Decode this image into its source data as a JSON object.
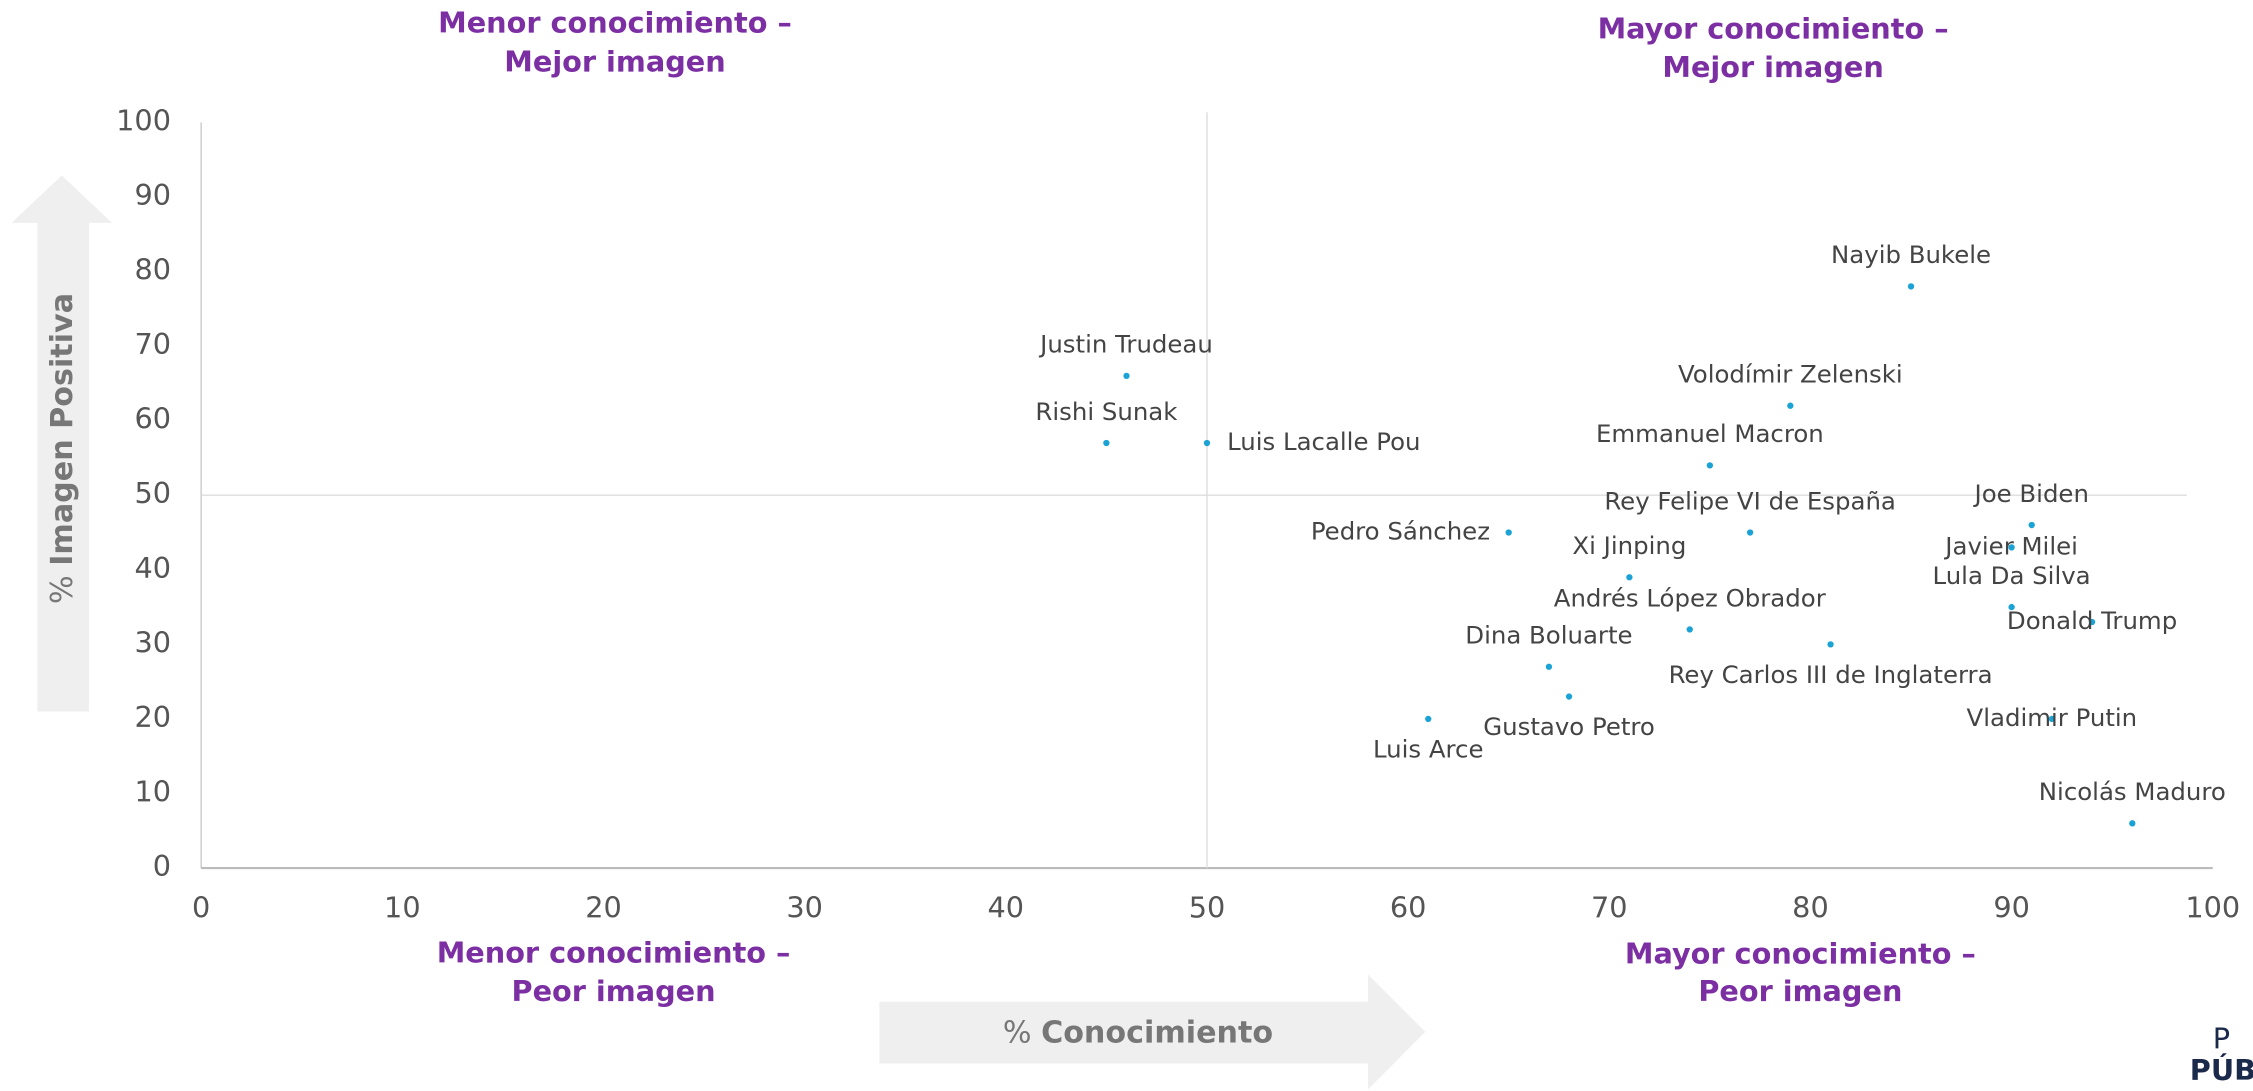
{
  "chart_data": {
    "type": "scatter",
    "quadrant_labels": {
      "top_left": [
        "Menor conocimiento –",
        "Mejor imagen"
      ],
      "top_right": [
        "Mayor conocimiento –",
        "Mejor imagen"
      ],
      "bottom_left": [
        "Menor conocimiento –",
        "Peor imagen"
      ],
      "bottom_right": [
        "Mayor conocimiento –",
        "Peor imagen"
      ]
    },
    "x_label": {
      "unit": "%",
      "text": "Conocimiento"
    },
    "y_label": {
      "unit": "%",
      "text": "Imagen Positiva"
    },
    "xlim": [
      0,
      100
    ],
    "xticks": [
      0,
      10,
      20,
      30,
      40,
      50,
      60,
      70,
      80,
      90,
      100
    ],
    "ylim": [
      0,
      100
    ],
    "yticks": [
      0,
      10,
      20,
      30,
      40,
      50,
      60,
      70,
      80,
      90,
      100
    ],
    "reference_lines": {
      "x": 50,
      "y": 50
    },
    "color": "#1ca3d6",
    "labels": [
      "Nayib Bukele",
      "Volodímir Zelenski",
      "Emmanuel Macron",
      "Justin Trudeau",
      "Rishi Sunak",
      "Luis Lacalle Pou",
      "Pedro Sánchez",
      "Rey Felipe VI de España",
      "Joe Biden",
      "Javier Milei",
      "Xi Jinping",
      "Lula Da Silva",
      "Andrés López Obrador",
      "Donald Trump",
      "Rey Carlos III de Inglaterra",
      "Dina Boluarte",
      "Gustavo Petro",
      "Luis Arce",
      "Vladimir Putin",
      "Nicolás Maduro"
    ],
    "x": [
      85,
      79,
      75,
      46,
      45,
      50,
      65,
      77,
      91,
      90,
      71,
      90,
      74,
      94,
      81,
      67,
      68,
      61,
      92,
      96
    ],
    "values": [
      78,
      62,
      54,
      66,
      57,
      57,
      45,
      45,
      46,
      43,
      39,
      35,
      32,
      33,
      30,
      27,
      23,
      20,
      20,
      6
    ],
    "logo": [
      "P",
      "PÚB"
    ]
  }
}
